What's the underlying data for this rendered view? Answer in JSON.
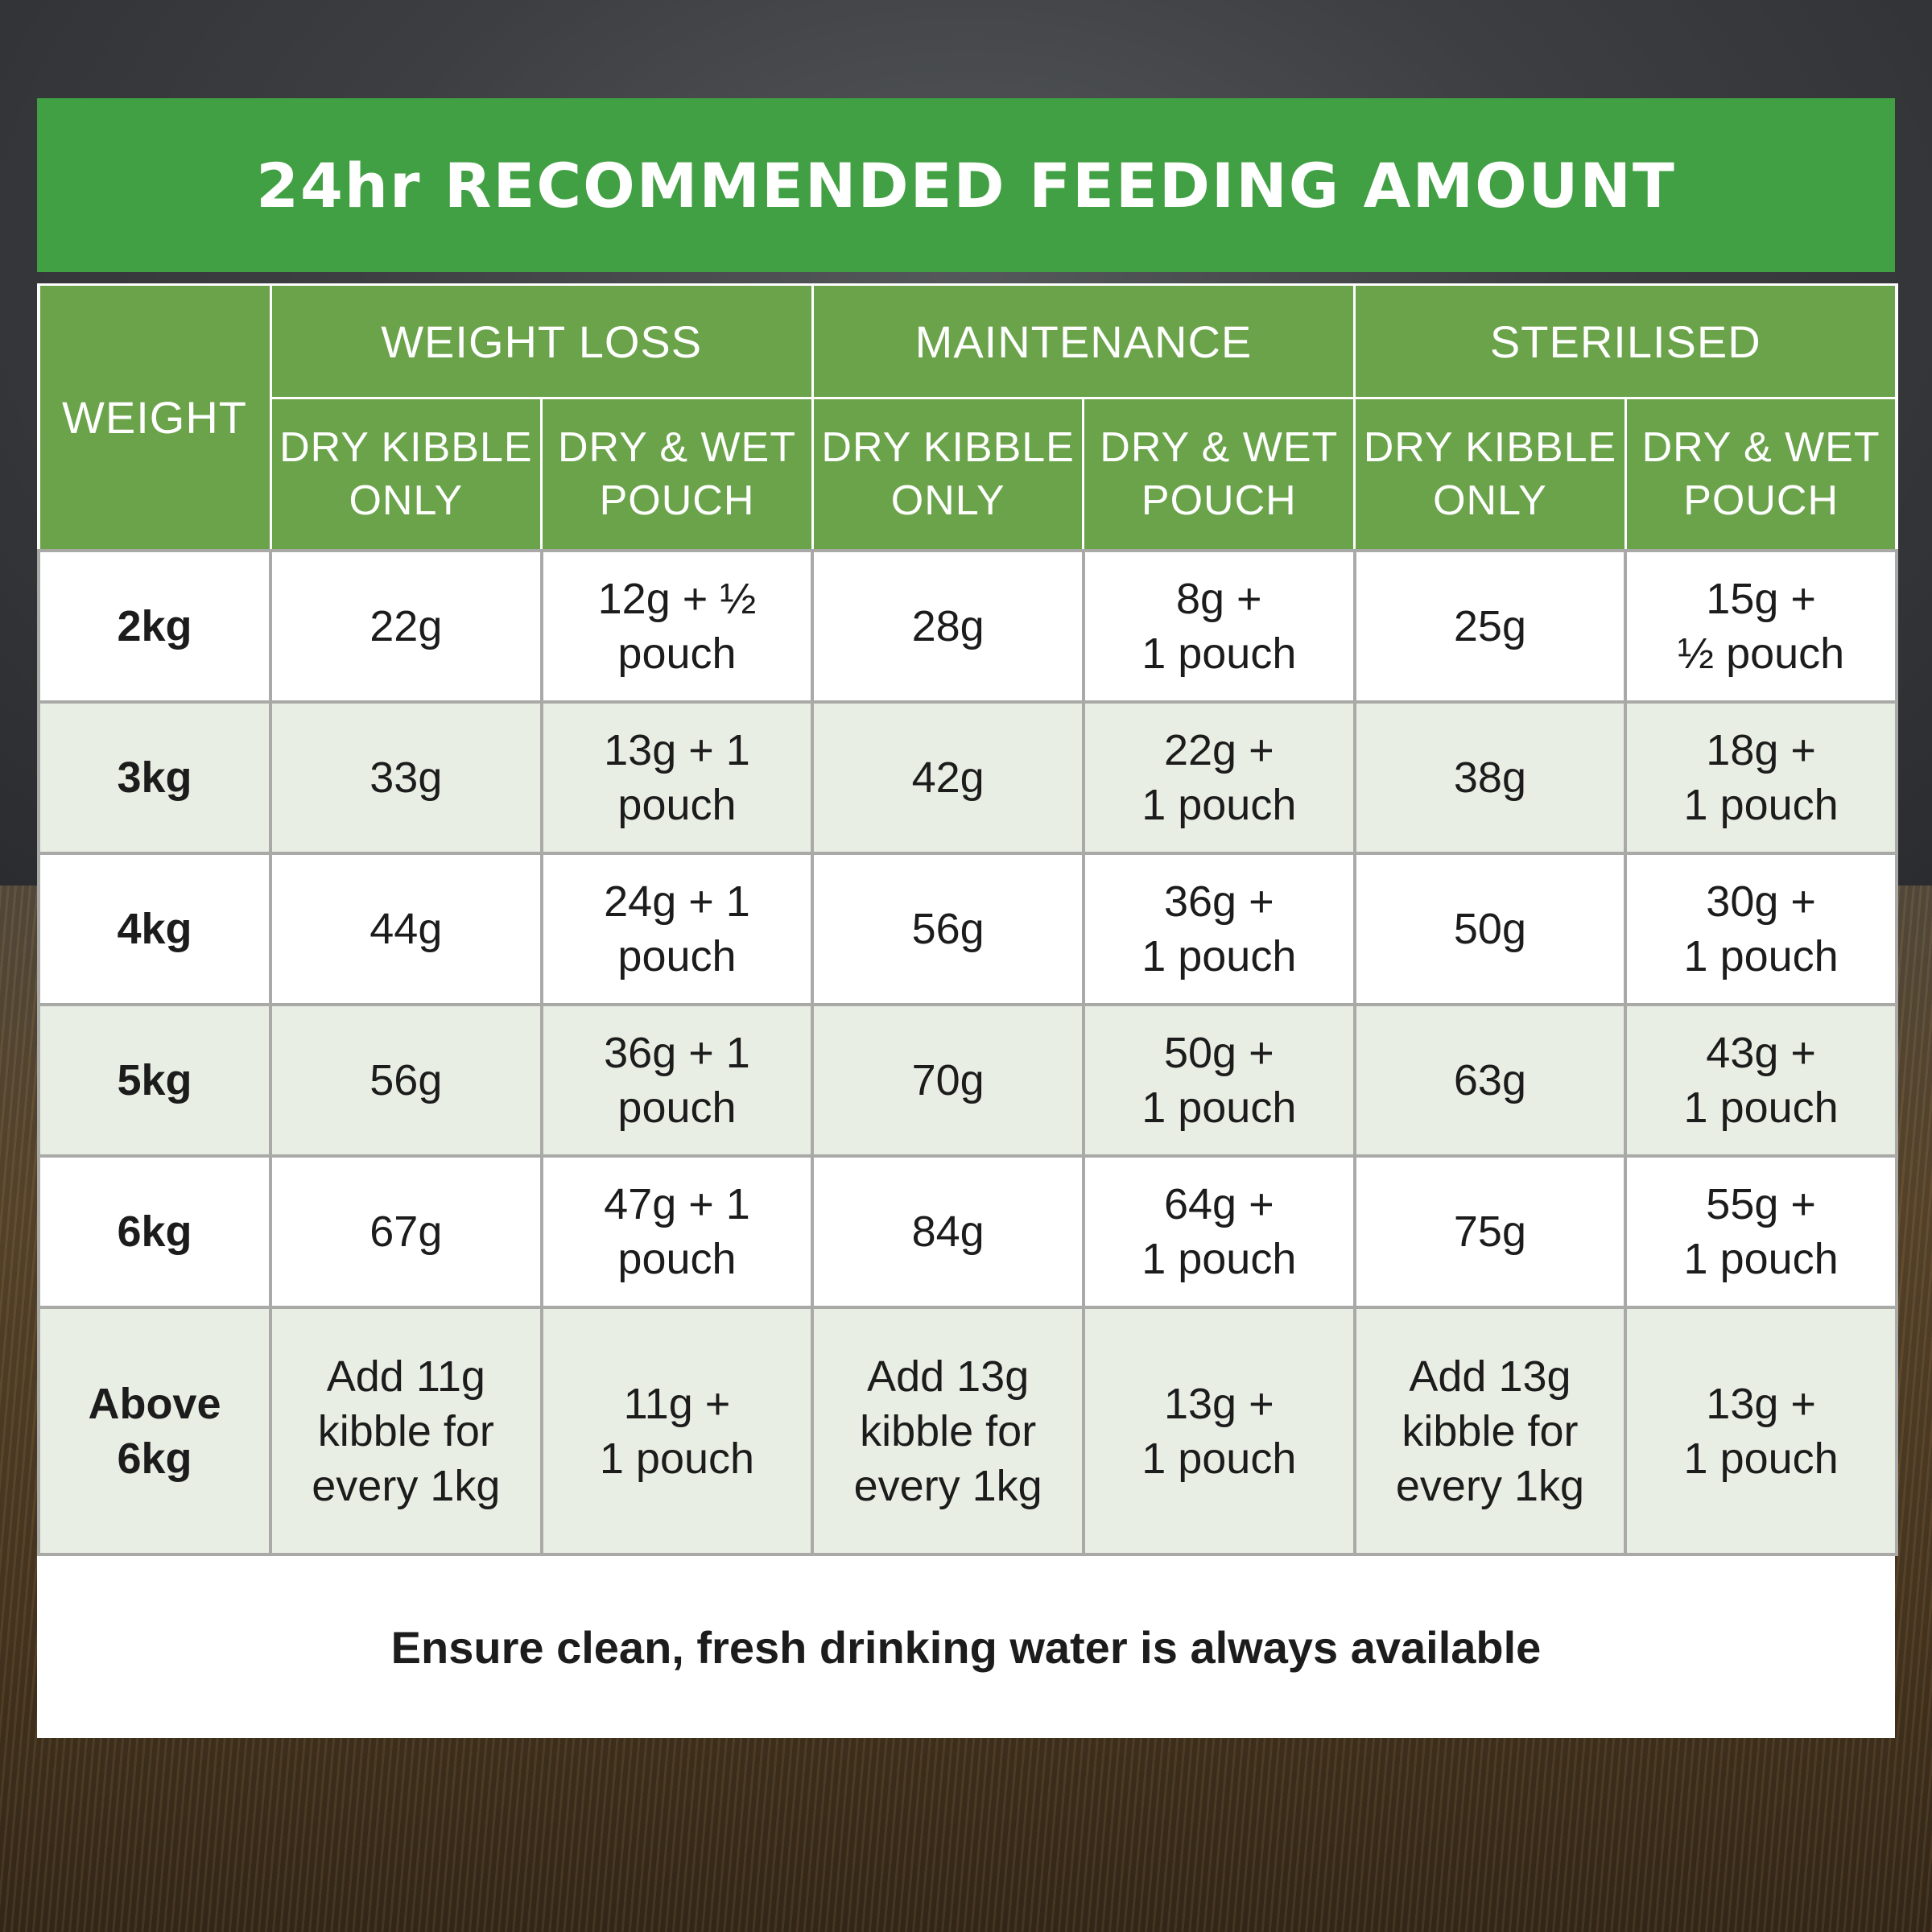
{
  "title": "24hr RECOMMENDED FEEDING AMOUNT",
  "table": {
    "weight_header": "WEIGHT",
    "groups": [
      "WEIGHT LOSS",
      "MAINTENANCE",
      "STERILISED"
    ],
    "subheaders": [
      "DRY KIBBLE\nONLY",
      "DRY & WET\nPOUCH",
      "DRY KIBBLE\nONLY",
      "DRY & WET\nPOUCH",
      "DRY KIBBLE\nONLY",
      "DRY & WET\nPOUCH"
    ],
    "rows": [
      {
        "weight": "2kg",
        "cells": [
          "22g",
          "12g + ½\npouch",
          "28g",
          "8g +\n1 pouch",
          "25g",
          "15g +\n½ pouch"
        ]
      },
      {
        "weight": "3kg",
        "cells": [
          "33g",
          "13g + 1\npouch",
          "42g",
          "22g +\n1 pouch",
          "38g",
          "18g +\n1 pouch"
        ]
      },
      {
        "weight": "4kg",
        "cells": [
          "44g",
          "24g + 1\npouch",
          "56g",
          "36g +\n1 pouch",
          "50g",
          "30g +\n1 pouch"
        ]
      },
      {
        "weight": "5kg",
        "cells": [
          "56g",
          "36g + 1\npouch",
          "70g",
          "50g +\n1 pouch",
          "63g",
          "43g +\n1 pouch"
        ]
      },
      {
        "weight": "6kg",
        "cells": [
          "67g",
          "47g + 1\npouch",
          "84g",
          "64g +\n1 pouch",
          "75g",
          "55g +\n1 pouch"
        ]
      },
      {
        "weight": "Above\n6kg",
        "cells": [
          "Add 11g\nkibble for\nevery 1kg",
          "11g +\n1 pouch",
          "Add 13g\nkibble for\nevery 1kg",
          "13g +\n1 pouch",
          "Add 13g\nkibble for\nevery 1kg",
          "13g +\n1 pouch"
        ]
      }
    ]
  },
  "footer": "Ensure clean, fresh drinking water is always available",
  "colors": {
    "title_green": "#41a043",
    "header_green": "#6aa34a",
    "alt_row": "#e9eee4",
    "grid": "#a9aaa8"
  }
}
